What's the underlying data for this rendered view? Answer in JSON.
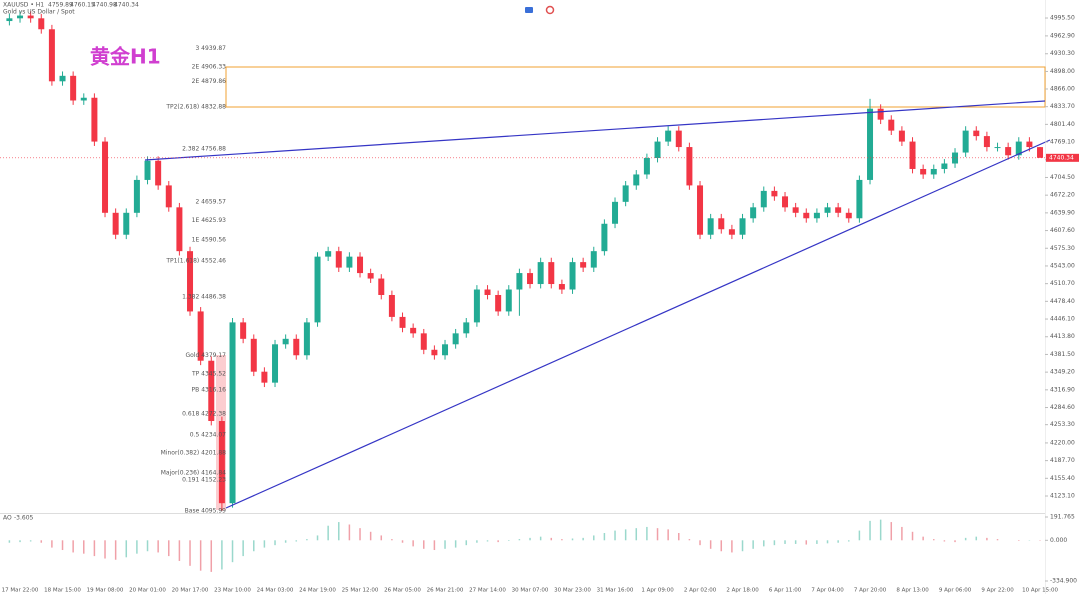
{
  "chart_data": {
    "type": "candlestick",
    "title": "黄金H1",
    "symbol": "XAUUSD • H1",
    "description": "Gold vs US Dollar / Spot",
    "up_color": "#22ab94",
    "down_color": "#f23645",
    "categories": [
      null,
      "17 Mar 22:00",
      null,
      null,
      null,
      "18 Mar 15:00",
      null,
      null,
      null,
      "19 Mar 08:00",
      null,
      null,
      null,
      "20 Mar 01:00",
      null,
      null,
      null,
      "20 Mar 17:00",
      null,
      null,
      null,
      "23 Mar 10:00",
      null,
      null,
      null,
      "24 Mar 03:00",
      null,
      null,
      null,
      "24 Mar 19:00",
      null,
      null,
      null,
      "25 Mar 12:00",
      null,
      null,
      null,
      "26 Mar 05:00",
      null,
      null,
      null,
      "26 Mar 21:00",
      null,
      null,
      null,
      "27 Mar 14:00",
      null,
      null,
      null,
      "30 Mar 07:00",
      null,
      null,
      null,
      "30 Mar 23:00",
      null,
      null,
      null,
      "31 Mar 16:00",
      null,
      null,
      null,
      "1 Apr 09:00",
      null,
      null,
      null,
      "2 Apr 02:00",
      null,
      null,
      null,
      "2 Apr 18:00",
      null,
      null,
      null,
      "6 Apr 11:00",
      null,
      null,
      null,
      "7 Apr 04:00",
      null,
      null,
      null,
      "7 Apr 20:00",
      null,
      null,
      null,
      "8 Apr 13:00",
      null,
      null,
      null,
      "9 Apr 06:00",
      null,
      null,
      null,
      "9 Apr 22:00",
      null,
      null,
      null,
      "10 Apr 15:00"
    ],
    "open": [
      4990,
      4995,
      5000,
      4995,
      4975,
      4880,
      4890,
      4845,
      4850,
      4770,
      4640,
      4600,
      4640,
      4700,
      4735,
      4690,
      4650,
      4570,
      4460,
      4370,
      4260,
      4110,
      4440,
      4410,
      4350,
      4330,
      4400,
      4410,
      4380,
      4440,
      4560,
      4570,
      4540,
      4560,
      4530,
      4520,
      4490,
      4450,
      4430,
      4420,
      4390,
      4380,
      4400,
      4420,
      4440,
      4500,
      4490,
      4460,
      4500,
      4530,
      4510,
      4550,
      4510,
      4500,
      4550,
      4540,
      4570,
      4620,
      4660,
      4690,
      4710,
      4740,
      4770,
      4790,
      4760,
      4690,
      4600,
      4630,
      4610,
      4600,
      4630,
      4650,
      4680,
      4670,
      4650,
      4640,
      4630,
      4640,
      4650,
      4640,
      4630,
      4700,
      4830,
      4810,
      4790,
      4770,
      4720,
      4710,
      4720,
      4730,
      4750,
      4790,
      4780,
      4760,
      4760,
      4745,
      4770,
      4759.89
    ],
    "high": [
      5003,
      5008,
      5008,
      5003,
      4983,
      4898,
      4898,
      4858,
      4858,
      4778,
      4648,
      4648,
      4708,
      4743,
      4743,
      4698,
      4658,
      4578,
      4468,
      4378,
      4268,
      4448,
      4448,
      4418,
      4358,
      4408,
      4418,
      4418,
      4448,
      4568,
      4578,
      4578,
      4568,
      4568,
      4538,
      4528,
      4498,
      4458,
      4438,
      4428,
      4398,
      4408,
      4428,
      4448,
      4508,
      4508,
      4498,
      4508,
      4538,
      4538,
      4558,
      4558,
      4518,
      4558,
      4558,
      4578,
      4628,
      4668,
      4698,
      4718,
      4748,
      4778,
      4798,
      4798,
      4768,
      4698,
      4638,
      4638,
      4618,
      4638,
      4658,
      4688,
      4688,
      4678,
      4658,
      4648,
      4648,
      4658,
      4658,
      4648,
      4708,
      4848,
      4838,
      4818,
      4798,
      4778,
      4728,
      4728,
      4738,
      4758,
      4798,
      4798,
      4788,
      4768,
      4768,
      4778,
      4778,
      4760.15
    ],
    "low": [
      4982,
      4987,
      4987,
      4967,
      4872,
      4872,
      4837,
      4837,
      4762,
      4632,
      4592,
      4592,
      4632,
      4692,
      4682,
      4642,
      4562,
      4452,
      4362,
      4252,
      4096,
      4102,
      4402,
      4342,
      4322,
      4322,
      4392,
      4372,
      4372,
      4432,
      4552,
      4532,
      4532,
      4522,
      4512,
      4482,
      4442,
      4422,
      4412,
      4382,
      4372,
      4372,
      4392,
      4412,
      4432,
      4482,
      4452,
      4452,
      4452,
      4502,
      4502,
      4502,
      4492,
      4492,
      4532,
      4532,
      4562,
      4612,
      4652,
      4682,
      4702,
      4732,
      4762,
      4752,
      4682,
      4592,
      4592,
      4602,
      4592,
      4592,
      4622,
      4642,
      4662,
      4642,
      4632,
      4622,
      4622,
      4632,
      4632,
      4622,
      4622,
      4692,
      4802,
      4782,
      4762,
      4712,
      4702,
      4702,
      4712,
      4722,
      4742,
      4772,
      4752,
      4752,
      4737,
      4737,
      4752,
      4740.98
    ],
    "close": [
      4995,
      5000,
      4995,
      4975,
      4880,
      4890,
      4845,
      4850,
      4770,
      4640,
      4600,
      4640,
      4700,
      4735,
      4690,
      4650,
      4570,
      4460,
      4370,
      4260,
      4110,
      4440,
      4410,
      4350,
      4330,
      4400,
      4410,
      4380,
      4440,
      4560,
      4570,
      4540,
      4560,
      4530,
      4520,
      4490,
      4450,
      4430,
      4420,
      4390,
      4380,
      4400,
      4420,
      4440,
      4500,
      4490,
      4460,
      4500,
      4530,
      4510,
      4550,
      4510,
      4500,
      4550,
      4540,
      4570,
      4620,
      4660,
      4690,
      4710,
      4740,
      4770,
      4790,
      4760,
      4690,
      4600,
      4630,
      4610,
      4600,
      4630,
      4650,
      4680,
      4670,
      4650,
      4640,
      4630,
      4640,
      4650,
      4640,
      4630,
      4700,
      4830,
      4810,
      4790,
      4770,
      4720,
      4710,
      4720,
      4730,
      4750,
      4790,
      4780,
      4760,
      4760,
      4745,
      4770,
      4760,
      4740.34
    ],
    "ylim": [
      4092.1,
      5028.4
    ],
    "yticks": [
      {
        "value": 4995.5,
        "label": "4995.50"
      },
      {
        "value": 4962.9,
        "label": "4962.90"
      },
      {
        "value": 4930.3,
        "label": "4930.30"
      },
      {
        "value": 4898,
        "label": "4898.00"
      },
      {
        "value": 4866,
        "label": "4866.00"
      },
      {
        "value": 4833.7,
        "label": "4833.70"
      },
      {
        "value": 4801.4,
        "label": "4801.40"
      },
      {
        "value": 4769.1,
        "label": "4769.10"
      },
      {
        "value": 4736.8,
        "label": "4736.80"
      },
      {
        "value": 4704.5,
        "label": "4704.50"
      },
      {
        "value": 4672.2,
        "label": "4672.20"
      },
      {
        "value": 4639.9,
        "label": "4639.90"
      },
      {
        "value": 4607.6,
        "label": "4607.60"
      },
      {
        "value": 4575.3,
        "label": "4575.30"
      },
      {
        "value": 4543,
        "label": "4543.00"
      },
      {
        "value": 4510.7,
        "label": "4510.70"
      },
      {
        "value": 4478.4,
        "label": "4478.40"
      },
      {
        "value": 4446.1,
        "label": "4446.10"
      },
      {
        "value": 4413.8,
        "label": "4413.80"
      },
      {
        "value": 4381.5,
        "label": "4381.50"
      },
      {
        "value": 4349.2,
        "label": "4349.20"
      },
      {
        "value": 4316.9,
        "label": "4316.90"
      },
      {
        "value": 4284.6,
        "label": "4284.60"
      },
      {
        "value": 4253.3,
        "label": "4253.30"
      },
      {
        "value": 4220,
        "label": "4220.00"
      },
      {
        "value": 4187.7,
        "label": "4187.70"
      },
      {
        "value": 4155.4,
        "label": "4155.40"
      },
      {
        "value": 4123.1,
        "label": "4123.10"
      }
    ],
    "fib_levels": [
      {
        "value": 4939.87,
        "label": "3 4939.87"
      },
      {
        "value": 4906.33,
        "label": "2E 4906.33"
      },
      {
        "value": 4879.86,
        "label": "2E 4879.86"
      },
      {
        "value": 4832.88,
        "label": "TP2(2.618) 4832.88"
      },
      {
        "value": 4756.88,
        "label": "2.382 4756.88"
      },
      {
        "value": 4659.57,
        "label": "2 4659.57"
      },
      {
        "value": 4625.93,
        "label": "1E 4625.93"
      },
      {
        "value": 4590.56,
        "label": "1E 4590.56"
      },
      {
        "value": 4552.46,
        "label": "TP1(1.618) 4552.46"
      },
      {
        "value": 4486.38,
        "label": "1.382 4486.38"
      },
      {
        "value": 4379.17,
        "label": "Gold 4379.17"
      },
      {
        "value": 4345.52,
        "label": "TP 4345.52"
      },
      {
        "value": 4316.16,
        "label": "PB 4316.16"
      },
      {
        "value": 4272.38,
        "label": "0.618 4272.38"
      },
      {
        "value": 4234.07,
        "label": "0.5 4234.07"
      },
      {
        "value": 4201.88,
        "label": "Minor(0.382) 4201.88"
      },
      {
        "value": 4164.84,
        "label": "Major(0.236) 4164.84"
      },
      {
        "value": 4152.23,
        "label": "0.191 4152.23"
      },
      {
        "value": 4095.99,
        "label": "Base 4095.99"
      }
    ],
    "ao_name": "AO",
    "ao": [
      -20,
      -15,
      -10,
      -20,
      -60,
      -80,
      -100,
      -110,
      -130,
      -150,
      -160,
      -140,
      -110,
      -90,
      -100,
      -130,
      -170,
      -210,
      -250,
      -260,
      -240,
      -180,
      -130,
      -90,
      -60,
      -40,
      -20,
      -10,
      10,
      40,
      120,
      150,
      130,
      100,
      70,
      40,
      10,
      -20,
      -50,
      -70,
      -80,
      -70,
      -60,
      -40,
      -20,
      -10,
      -15,
      -5,
      10,
      20,
      30,
      20,
      10,
      15,
      20,
      40,
      60,
      80,
      90,
      100,
      110,
      100,
      90,
      60,
      10,
      -40,
      -70,
      -90,
      -100,
      -90,
      -70,
      -50,
      -40,
      -30,
      -30,
      -35,
      -30,
      -25,
      -20,
      -10,
      80,
      160,
      170,
      150,
      110,
      70,
      30,
      10,
      -10,
      -15,
      20,
      30,
      20,
      10,
      0,
      -5,
      -3,
      -3.605
    ],
    "ao_ylim": [
      -359.6,
      216.4
    ],
    "ao_yticks": [
      191.765,
      {
        "value": 0,
        "label": "0.000"
      },
      {
        "value": -334.9,
        "label": "-334.900"
      }
    ]
  }
}
